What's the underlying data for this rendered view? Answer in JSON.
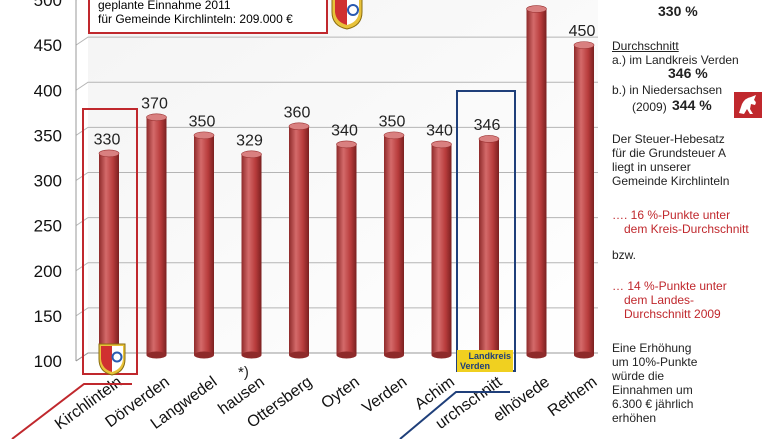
{
  "chart_data": {
    "type": "bar",
    "categories": [
      "Kirchlinteln",
      "Dörverden",
      "Langwedel",
      "Ottersberg/Thedinghausen",
      "Ottersberg",
      "Oyten",
      "Verden",
      "Achim",
      "Durchschnitt",
      "Kirchwalsede/Visselhövede",
      "Rethem"
    ],
    "visible_category_labels": [
      "Kirchlinteln",
      "Dörverden",
      "Langwedel",
      "hausen",
      "Ottersberg",
      "Oyten",
      "Verden",
      "Achim",
      "urchschnitt",
      "elhövede",
      "Rethem"
    ],
    "values": [
      330,
      370,
      350,
      329,
      360,
      340,
      350,
      340,
      346,
      490,
      450
    ],
    "data_labels": [
      "330",
      "370",
      "350",
      "329",
      "360",
      "340",
      "350",
      "340",
      "346",
      "",
      "450"
    ],
    "y_ticks": [
      "100",
      "150",
      "200",
      "250",
      "300",
      "350",
      "400",
      "450",
      "500"
    ],
    "ylim": [
      100,
      500
    ],
    "grid": true,
    "bar_color": "#b83c3c",
    "highlight_color": "#c0282d",
    "average_box_color": "#1f3f7a",
    "footnote": "*)"
  },
  "note": {
    "line1": "geplante Einnahme 2011",
    "line2": "für Gemeinde Kirchlinteln: 209.000 €"
  },
  "badge": {
    "landkreis": "Landkreis",
    "verden": "Verden"
  },
  "side": {
    "top_value": "330 %",
    "durchschnitt": "Durchschnitt",
    "a_label": "a.) im Landkreis Verden",
    "a_value": "346 %",
    "b_label": "b.) in Niedersachsen",
    "b_year": "(2009)",
    "b_value": "344 %",
    "text1": [
      "Der Steuer-Hebesatz",
      "für die Grundsteuer A",
      "liegt in unserer",
      "Gemeinde Kirchlinteln"
    ],
    "red1": [
      "…. 16 %-Punkte unter",
      "dem Kreis-Durchschnitt"
    ],
    "bzw": "bzw.",
    "red2": [
      "… 14 %-Punkte unter",
      "dem Landes-",
      "Durchschnitt 2009"
    ],
    "text2": [
      "Eine Erhöhung",
      "um 10%-Punkte",
      "würde die",
      "Einnahmen um",
      "6.300 € jährlich",
      "erhöhen"
    ]
  }
}
